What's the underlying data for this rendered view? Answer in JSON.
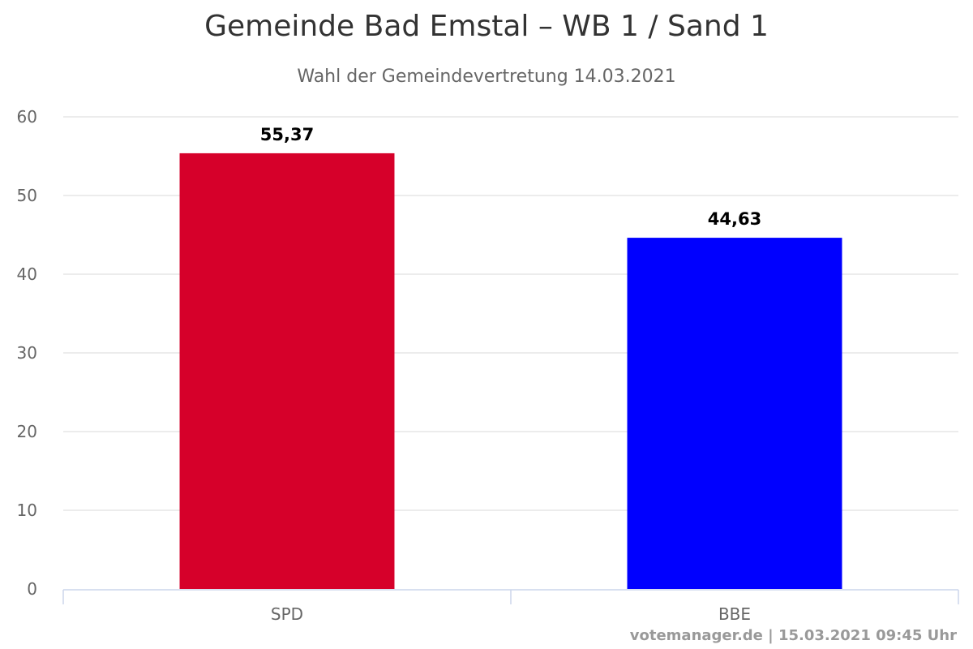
{
  "chart_data": {
    "type": "bar",
    "title": "Gemeinde Bad Emstal – WB 1 / Sand 1",
    "subtitle": "Wahl der Gemeindevertretung 14.03.2021",
    "xlabel": "",
    "ylabel": "",
    "categories": [
      "SPD",
      "BBE"
    ],
    "values": [
      55.37,
      44.63
    ],
    "data_labels": [
      "55,37",
      "44,63"
    ],
    "colors": [
      "#d6002a",
      "#0000ff"
    ],
    "ylim": [
      0,
      60
    ],
    "yticks": [
      0,
      10,
      20,
      30,
      40,
      50,
      60
    ],
    "grid": true,
    "legend": "none"
  },
  "credits": "votemanager.de | 15.03.2021 09:45 Uhr"
}
